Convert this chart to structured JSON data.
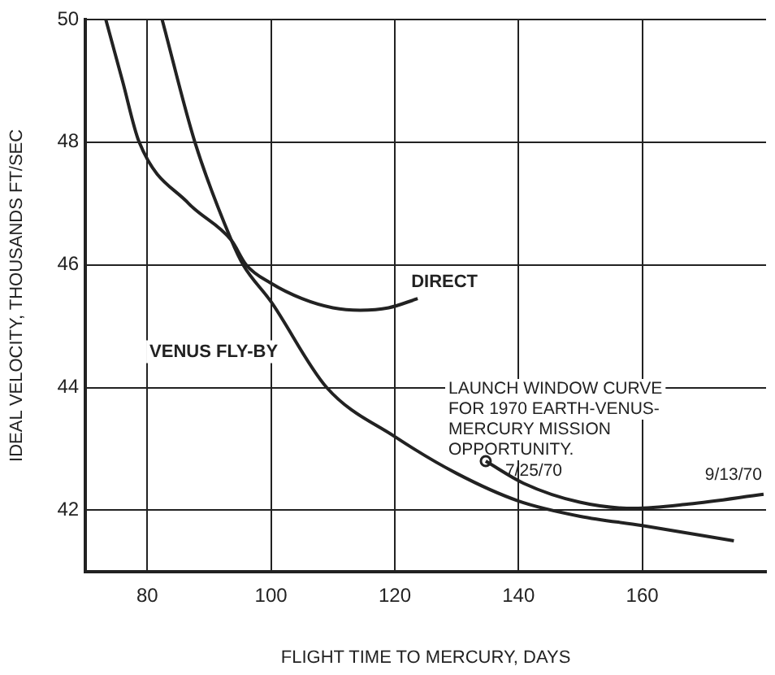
{
  "chart_data": {
    "type": "line",
    "xlabel": "FLIGHT TIME TO MERCURY, DAYS",
    "ylabel": "IDEAL VELOCITY, THOUSANDS FT/SEC",
    "xlim": [
      70,
      180
    ],
    "xticks": [
      80,
      100,
      120,
      140,
      160
    ],
    "ylim": [
      41,
      50
    ],
    "yticks": [
      42,
      44,
      46,
      48,
      50
    ],
    "grid": true,
    "legend": false,
    "marker": "none",
    "line_style": "solid",
    "series": [
      {
        "name": "DIRECT",
        "color": "#222222",
        "x": [
          73.3,
          76,
          78.7,
          86.7,
          93.6,
          96,
          100,
          105,
          110,
          114.4,
          119,
          123.7
        ],
        "values": [
          50,
          49,
          48,
          47,
          46.4,
          46,
          45.7,
          45.45,
          45.3,
          45.26,
          45.3,
          45.45
        ]
      },
      {
        "name": "VENUS FLY-BY",
        "color": "#222222",
        "x": [
          82.4,
          87.7,
          93.6,
          95.5,
          100,
          109,
          120,
          130,
          140,
          150,
          160,
          174.8
        ],
        "values": [
          50,
          48,
          46.4,
          46,
          45.4,
          44,
          43.2,
          42.6,
          42.15,
          41.9,
          41.75,
          41.5
        ]
      },
      {
        "color": "#222222",
        "x": [
          134.7,
          140.8,
          149.9,
          158.7,
          167.5,
          179.6
        ],
        "values": [
          42.8,
          42.44,
          42.13,
          42.03,
          42.1,
          42.26
        ]
      },
      {
        "type": "scatter",
        "marker": "circle",
        "color": "#222222",
        "x": [
          134.7
        ],
        "values": [
          42.8
        ]
      }
    ],
    "annotations": [
      "LAUNCH WINDOW CURVE\nFOR 1970 EARTH-VENUS-\nMERCURY MISSION\nOPPORTUNITY.",
      {
        "text": "7/25/70",
        "x": 134.7,
        "y": 42.8
      },
      {
        "text": "9/13/70",
        "x": 179.6,
        "y": 42.26
      }
    ]
  }
}
